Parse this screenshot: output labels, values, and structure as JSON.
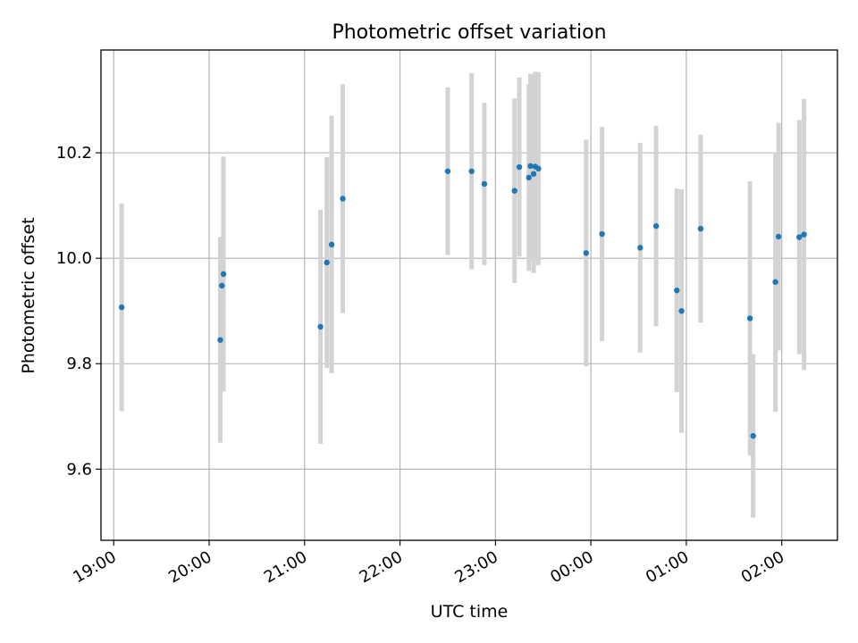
{
  "chart_data": {
    "type": "scatter",
    "title": "Photometric offset variation",
    "xlabel": "UTC time",
    "ylabel": "Photometric offset",
    "x_ticks": [
      "19:00",
      "20:00",
      "21:00",
      "22:00",
      "23:00",
      "00:00",
      "01:00",
      "02:00"
    ],
    "y_ticks": [
      "9.6",
      "9.8",
      "10.0",
      "10.2"
    ],
    "y_tick_values": [
      9.6,
      9.8,
      10.0,
      10.2
    ],
    "xlim": [
      "18:52",
      "02:35"
    ],
    "ylim": [
      9.465,
      10.395
    ],
    "grid": true,
    "error_bar_color": "#d3d3d3",
    "point_color": "#1f77b4",
    "points": [
      {
        "x": "19:05",
        "y": 9.907,
        "err": 0.197
      },
      {
        "x": "20:07",
        "y": 9.845,
        "err": 0.195
      },
      {
        "x": "20:08",
        "y": 9.948,
        "err": 0.093
      },
      {
        "x": "20:09",
        "y": 9.97,
        "err": 0.223
      },
      {
        "x": "21:10",
        "y": 9.87,
        "err": 0.222
      },
      {
        "x": "21:14",
        "y": 9.992,
        "err": 0.2
      },
      {
        "x": "21:17",
        "y": 10.026,
        "err": 0.244
      },
      {
        "x": "21:24",
        "y": 10.113,
        "err": 0.217
      },
      {
        "x": "22:30",
        "y": 10.165,
        "err": 0.159
      },
      {
        "x": "22:45",
        "y": 10.165,
        "err": 0.186
      },
      {
        "x": "22:53",
        "y": 10.141,
        "err": 0.154
      },
      {
        "x": "23:12",
        "y": 10.128,
        "err": 0.175
      },
      {
        "x": "23:15",
        "y": 10.173,
        "err": 0.17
      },
      {
        "x": "23:21",
        "y": 10.153,
        "err": 0.177
      },
      {
        "x": "23:22",
        "y": 10.175,
        "err": 0.175
      },
      {
        "x": "23:24",
        "y": 10.16,
        "err": 0.188
      },
      {
        "x": "23:25",
        "y": 10.174,
        "err": 0.18
      },
      {
        "x": "23:27",
        "y": 10.17,
        "err": 0.183
      },
      {
        "x": "23:57",
        "y": 10.01,
        "err": 0.215
      },
      {
        "x": "00:07",
        "y": 10.046,
        "err": 0.203
      },
      {
        "x": "00:31",
        "y": 10.02,
        "err": 0.199
      },
      {
        "x": "00:41",
        "y": 10.061,
        "err": 0.19
      },
      {
        "x": "00:54",
        "y": 9.939,
        "err": 0.193
      },
      {
        "x": "00:57",
        "y": 9.9,
        "err": 0.231
      },
      {
        "x": "01:09",
        "y": 10.056,
        "err": 0.178
      },
      {
        "x": "01:40",
        "y": 9.886,
        "err": 0.26
      },
      {
        "x": "01:42",
        "y": 9.663,
        "err": 0.155
      },
      {
        "x": "01:56",
        "y": 9.955,
        "err": 0.246
      },
      {
        "x": "01:58",
        "y": 10.041,
        "err": 0.216
      },
      {
        "x": "02:11",
        "y": 10.04,
        "err": 0.222
      },
      {
        "x": "02:14",
        "y": 10.045,
        "err": 0.257
      }
    ]
  }
}
